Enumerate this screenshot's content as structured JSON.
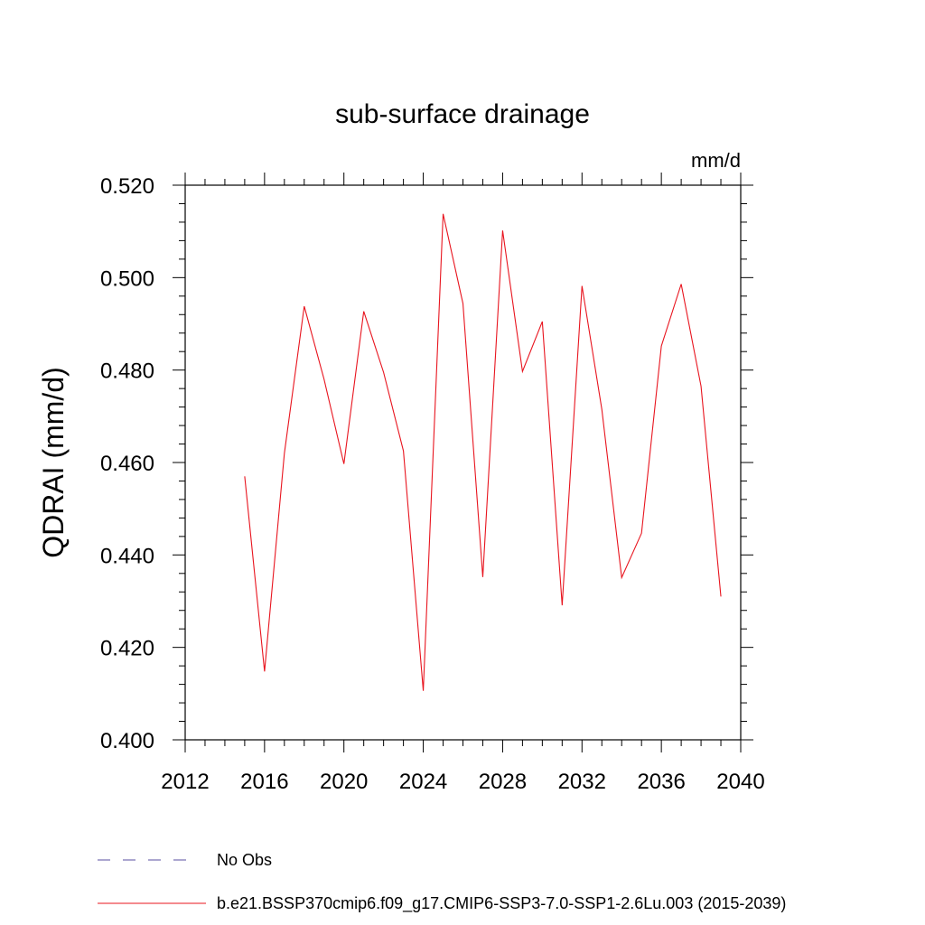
{
  "chart_data": {
    "type": "line",
    "title": "sub-surface drainage",
    "units": "mm/d",
    "ylabel": "QDRAI  (mm/d)",
    "xlabel": "",
    "xlim": [
      2012,
      2040
    ],
    "ylim": [
      0.4,
      0.52
    ],
    "x_ticks": [
      2012,
      2016,
      2020,
      2024,
      2028,
      2032,
      2036,
      2040
    ],
    "x_tick_labels": [
      "2012",
      "2016",
      "2020",
      "2024",
      "2028",
      "2032",
      "2036",
      "2040"
    ],
    "y_ticks": [
      0.4,
      0.42,
      0.44,
      0.46,
      0.48,
      0.5,
      0.52
    ],
    "y_tick_labels": [
      "0.400",
      "0.420",
      "0.440",
      "0.460",
      "0.480",
      "0.500",
      "0.520"
    ],
    "grid": false,
    "legend_position": "bottom",
    "series": [
      {
        "name": "b.e21.BSSP370cmip6.f09_g17.CMIP6-SSP3-7.0-SSP1-2.6Lu.003 (2015-2039)",
        "color": "#e8141e",
        "style": "solid",
        "x": [
          2015,
          2016,
          2017,
          2018,
          2019,
          2020,
          2021,
          2022,
          2023,
          2024,
          2025,
          2026,
          2027,
          2028,
          2029,
          2030,
          2031,
          2032,
          2033,
          2034,
          2035,
          2036,
          2037,
          2038,
          2039
        ],
        "y": [
          0.457,
          0.4148,
          0.462,
          0.4938,
          0.478,
          0.4597,
          0.4927,
          0.4795,
          0.4625,
          0.4106,
          0.5138,
          0.4944,
          0.4352,
          0.5102,
          0.4797,
          0.4905,
          0.4291,
          0.4982,
          0.4715,
          0.4351,
          0.4447,
          0.4852,
          0.4986,
          0.4765,
          0.431
        ]
      }
    ],
    "legend": [
      {
        "label": "No Obs",
        "color": "#5a4fa0",
        "style": "dashed"
      },
      {
        "label": "b.e21.BSSP370cmip6.f09_g17.CMIP6-SSP3-7.0-SSP1-2.6Lu.003 (2015-2039)",
        "color": "#e8141e",
        "style": "solid"
      }
    ]
  }
}
